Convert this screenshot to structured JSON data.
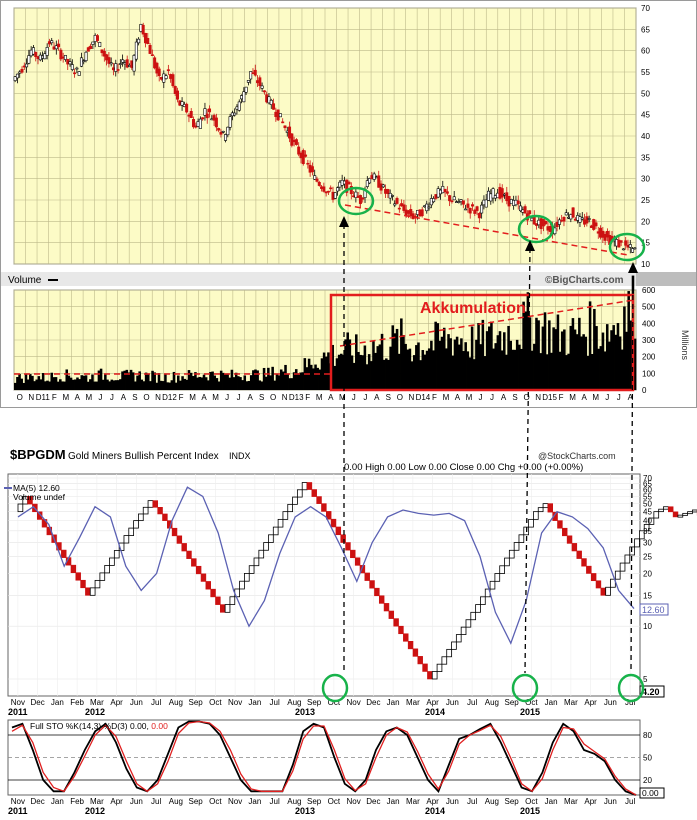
{
  "top_panel": {
    "watermark": "©BigCharts.com",
    "volume_label": "Volume",
    "millions_label": "Millions",
    "annotation": "Akkumulation"
  },
  "bottom_panel": {
    "symbol": "$BPGDM",
    "title": "Gold Miners Bullish Percent Index",
    "exchange": "INDX",
    "source": "@StockCharts.com",
    "quote_line": "0.00   High 0.00   Low 0.00   Close 0.00   Chg +0.00 (+0.00%)",
    "legend_ma": "MA(5) 12.60",
    "legend_volume": "Volume undef",
    "ma_value_tag": "12.60",
    "last_value_tag": "4.20",
    "sto_legend_prefix": "Full STO %K(14,3) %D(3) 0.00, ",
    "sto_legend_red": "0.00",
    "sto_value_tag": "0.00"
  },
  "colors": {
    "chart_bg": "#fcfbc6",
    "grid": "#bdb98a",
    "up": "#000000",
    "down": "#cc1111",
    "accent_red": "#e21d1d",
    "circle_green": "#17b24a",
    "ma_line": "#5b61b3",
    "sto_k": "#000000",
    "sto_d": "#e02020"
  },
  "chart_data": [
    {
      "type": "line",
      "title": "",
      "ylabel": "",
      "ylim": [
        10,
        70
      ],
      "y_ticks": [
        10,
        15,
        20,
        25,
        30,
        35,
        40,
        45,
        50,
        55,
        60,
        65,
        70
      ],
      "x_tick_labels": [
        "O",
        "N",
        "D11",
        "F",
        "M",
        "A",
        "M",
        "J",
        "J",
        "A",
        "S",
        "O",
        "N",
        "D12",
        "F",
        "M",
        "A",
        "M",
        "J",
        "J",
        "A",
        "S",
        "O",
        "N",
        "D13",
        "F",
        "M",
        "A",
        "M",
        "J",
        "J",
        "A",
        "S",
        "O",
        "N",
        "D14",
        "F",
        "M",
        "A",
        "M",
        "J",
        "J",
        "A",
        "S",
        "O",
        "N",
        "D15",
        "F",
        "M",
        "A",
        "M",
        "J",
        "J",
        "A"
      ],
      "grid": true,
      "series": [
        {
          "values": [
            53,
            56,
            60,
            58,
            62,
            60,
            57,
            55,
            60,
            63,
            59,
            55,
            58,
            56,
            66,
            60,
            53,
            55,
            48,
            46,
            42,
            46,
            44,
            40,
            45,
            49,
            55,
            52,
            48,
            45,
            41,
            37,
            34,
            30,
            28,
            26,
            29,
            27,
            25,
            31,
            29,
            26,
            24,
            22,
            21,
            23,
            26,
            27,
            25,
            24,
            23,
            22,
            26,
            27,
            25,
            24,
            22,
            20,
            19,
            18,
            21,
            22,
            20,
            20,
            18,
            16,
            15,
            14,
            13
          ]
        }
      ]
    },
    {
      "type": "bar",
      "title": "",
      "ylabel": "Millions",
      "ylim": [
        0,
        600
      ],
      "y_ticks": [
        0,
        100,
        200,
        300,
        400,
        500,
        600
      ],
      "grid": true,
      "series": [
        {
          "values": [
            70,
            75,
            80,
            70,
            90,
            85,
            80,
            75,
            90,
            85,
            80,
            90,
            85,
            80,
            75,
            80,
            85,
            90,
            95,
            90,
            85,
            90,
            95,
            90,
            100,
            110,
            120,
            140,
            180,
            200,
            220,
            240,
            230,
            250,
            260,
            280,
            300,
            260,
            270,
            280,
            300,
            320,
            290,
            280,
            300,
            320,
            340,
            360,
            420,
            380,
            340,
            320,
            330,
            350,
            380,
            340,
            400,
            460,
            520
          ]
        }
      ]
    },
    {
      "type": "line",
      "title": "Gold Miners Bullish Percent Index",
      "ylabel": "",
      "ylim": [
        4,
        70
      ],
      "y_ticks": [
        5,
        10,
        15,
        20,
        25,
        30,
        35,
        40,
        45,
        50,
        55,
        60,
        65,
        70
      ],
      "x_tick_labels": [
        "Nov",
        "Dec",
        "Jan",
        "Feb",
        "Mar",
        "Apr",
        "Jun",
        "Jul",
        "Aug",
        "Sep",
        "Oct",
        "Nov",
        "Jan",
        "Jul",
        "Aug",
        "Sep",
        "Oct",
        "Nov",
        "Dec",
        "Jan",
        "Mar",
        "Apr",
        "Jun",
        "Jul",
        "Aug",
        "Sep",
        "Oct",
        "Jan",
        "Mar",
        "Apr",
        "Jun",
        "Jul"
      ],
      "year_labels": [
        "2011",
        "2012",
        "2013",
        "2014",
        "2015"
      ],
      "series": [
        {
          "name": "$BPGDM",
          "x": [
            "2011-10",
            "2011-12",
            "2012-01",
            "2012-02",
            "2012-03",
            "2012-05",
            "2012-06",
            "2012-07",
            "2012-08",
            "2012-09",
            "2012-10",
            "2012-12",
            "2013-02",
            "2013-04",
            "2013-06",
            "2013-07",
            "2013-08",
            "2013-09",
            "2013-10",
            "2013-11",
            "2013-12",
            "2014-01",
            "2014-02",
            "2014-03",
            "2014-04",
            "2014-05",
            "2014-06",
            "2014-07",
            "2014-08",
            "2014-09",
            "2014-10",
            "2014-11",
            "2014-12",
            "2015-01",
            "2015-02",
            "2015-03",
            "2015-04",
            "2015-05",
            "2015-06",
            "2015-07",
            "2015-08"
          ],
          "values": [
            45,
            55,
            30,
            15,
            40,
            52,
            40,
            18,
            12,
            20,
            45,
            66,
            50,
            30,
            10,
            5,
            12,
            30,
            45,
            50,
            40,
            22,
            15,
            35,
            45,
            48,
            42,
            44,
            46,
            40,
            20,
            8,
            5,
            15,
            40,
            48,
            40,
            35,
            25,
            12,
            4.2
          ]
        },
        {
          "name": "MA(5)",
          "values": [
            42,
            48,
            38,
            22,
            32,
            48,
            42,
            22,
            16,
            20,
            40,
            62,
            55,
            34,
            16,
            10,
            14,
            26,
            42,
            48,
            42,
            28,
            18,
            30,
            42,
            46,
            44,
            43,
            44,
            40,
            25,
            12,
            8,
            14,
            34,
            45,
            42,
            36,
            28,
            16,
            12.6
          ]
        }
      ]
    },
    {
      "type": "line",
      "title": "Full STO %K(14,3) %D(3)",
      "ylim": [
        0,
        100
      ],
      "y_ticks": [
        20,
        50,
        80
      ],
      "series": [
        {
          "name": "%K",
          "values": [
            90,
            95,
            60,
            20,
            5,
            5,
            30,
            60,
            85,
            95,
            70,
            35,
            10,
            5,
            20,
            55,
            90,
            98,
            98,
            95,
            80,
            50,
            20,
            5,
            5,
            5,
            5,
            40,
            85,
            95,
            90,
            50,
            15,
            5,
            20,
            60,
            85,
            90,
            80,
            50,
            20,
            5,
            40,
            75,
            80,
            88,
            95,
            70,
            40,
            10,
            5,
            30,
            70,
            95,
            85,
            60,
            55,
            45,
            20,
            5,
            0
          ]
        },
        {
          "name": "%D",
          "values": [
            85,
            93,
            70,
            30,
            10,
            5,
            25,
            52,
            80,
            93,
            78,
            45,
            15,
            5,
            15,
            45,
            82,
            96,
            98,
            96,
            85,
            60,
            28,
            8,
            5,
            5,
            5,
            32,
            75,
            92,
            92,
            60,
            22,
            6,
            15,
            50,
            80,
            90,
            84,
            58,
            28,
            8,
            32,
            68,
            80,
            86,
            93,
            78,
            48,
            15,
            5,
            22,
            60,
            90,
            88,
            68,
            58,
            48,
            25,
            8,
            0
          ]
        }
      ]
    }
  ]
}
